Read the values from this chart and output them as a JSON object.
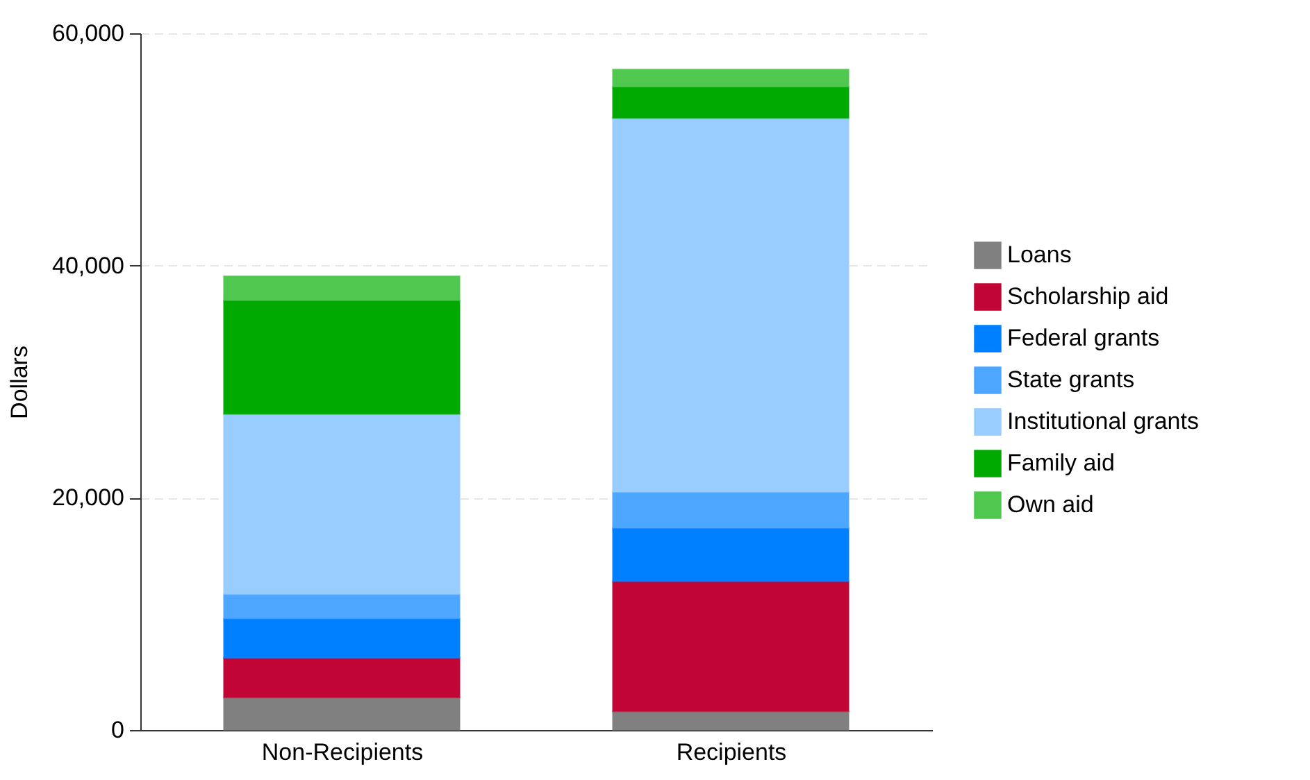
{
  "chart_data": {
    "type": "bar",
    "stacked": true,
    "ylabel": "Dollars",
    "categories": [
      "Non-Recipients",
      "Recipients"
    ],
    "series": [
      {
        "name": "Loans",
        "color": "#808080",
        "values": [
          2800,
          1600
        ]
      },
      {
        "name": "Scholarship aid",
        "color": "#c10534",
        "values": [
          3400,
          11200
        ]
      },
      {
        "name": "Federal grants",
        "color": "#0080ff",
        "values": [
          3400,
          4600
        ]
      },
      {
        "name": "State grants",
        "color": "#4da6ff",
        "values": [
          2100,
          3100
        ]
      },
      {
        "name": "Institutional grants",
        "color": "#99ccff",
        "values": [
          15500,
          32200
        ]
      },
      {
        "name": "Family aid",
        "color": "#00aa00",
        "values": [
          9800,
          2700
        ]
      },
      {
        "name": "Own aid",
        "color": "#50c850",
        "values": [
          2100,
          1500
        ]
      }
    ],
    "ylim": [
      0,
      60000
    ],
    "yticks": [
      0,
      {
        "value": 20000,
        "label": "20,000"
      },
      {
        "value": 40000,
        "label": "40,000"
      },
      {
        "value": 60000,
        "label": "60,000"
      }
    ],
    "grid": "y",
    "legend": "right"
  }
}
